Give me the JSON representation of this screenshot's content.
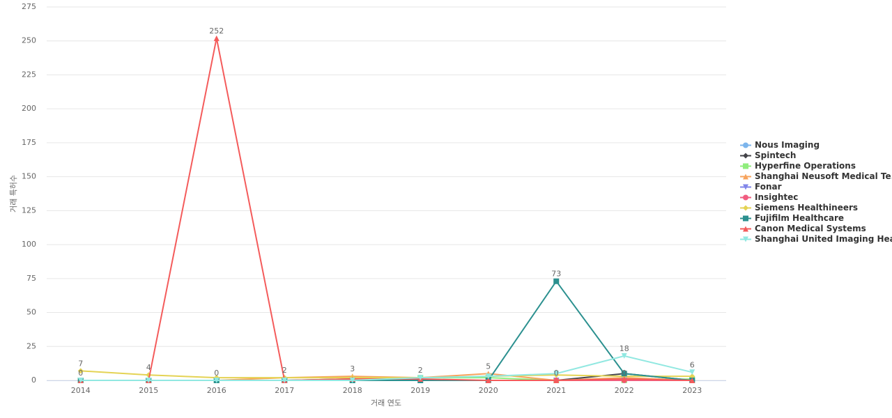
{
  "chart_data": {
    "type": "line",
    "x_label": "거래 연도",
    "y_label": "거래 특허수",
    "categories": [
      "2014",
      "2015",
      "2016",
      "2017",
      "2018",
      "2019",
      "2020",
      "2021",
      "2022",
      "2023"
    ],
    "ylim": [
      0,
      275
    ],
    "yticks": [
      0,
      25,
      50,
      75,
      100,
      125,
      150,
      175,
      200,
      225,
      250,
      275
    ],
    "grid": true,
    "legend": "right",
    "series": [
      {
        "name": "Nous Imaging",
        "color": "#7cb5ec",
        "marker": "circle",
        "values": [
          0,
          0,
          0,
          0,
          0,
          0,
          0,
          0,
          0,
          0
        ]
      },
      {
        "name": "Spintech",
        "color": "#434348",
        "marker": "diamond",
        "values": [
          0,
          0,
          0,
          0,
          1,
          0,
          0,
          0,
          5,
          0
        ]
      },
      {
        "name": "Hyperfine Operations",
        "color": "#90ed7d",
        "marker": "square",
        "values": [
          0,
          0,
          0,
          0,
          0,
          2,
          2,
          0,
          0,
          1
        ]
      },
      {
        "name": "Shanghai Neusoft Medical Te...",
        "color": "#f7a35c",
        "marker": "triangle",
        "values": [
          0,
          0,
          0,
          2,
          3,
          2,
          5,
          0,
          2,
          0
        ]
      },
      {
        "name": "Fonar",
        "color": "#8085e9",
        "marker": "triangle-down",
        "values": [
          0,
          0,
          0,
          0,
          0,
          0,
          0,
          0,
          0,
          0
        ]
      },
      {
        "name": "Insightec",
        "color": "#f15c80",
        "marker": "circle",
        "values": [
          0,
          0,
          0,
          0,
          0,
          0,
          0,
          0,
          0,
          0
        ]
      },
      {
        "name": "Siemens Healthineers",
        "color": "#e4d354",
        "marker": "diamond",
        "values": [
          7,
          4,
          2,
          2,
          2,
          2,
          3,
          4,
          3,
          3
        ]
      },
      {
        "name": "Fujifilm Healthcare",
        "color": "#2b908f",
        "marker": "square",
        "values": [
          0,
          0,
          0,
          0,
          0,
          0,
          0,
          73,
          5,
          0
        ]
      },
      {
        "name": "Canon Medical Systems",
        "color": "#f45b5b",
        "marker": "triangle",
        "values": [
          0,
          0,
          252,
          0,
          1,
          1,
          0,
          0,
          1,
          0
        ]
      },
      {
        "name": "Shanghai United Imaging Hea...",
        "color": "#91e8e1",
        "marker": "triangle-down",
        "values": [
          0,
          0,
          0,
          0,
          0,
          2,
          3,
          5,
          18,
          6
        ]
      }
    ]
  }
}
